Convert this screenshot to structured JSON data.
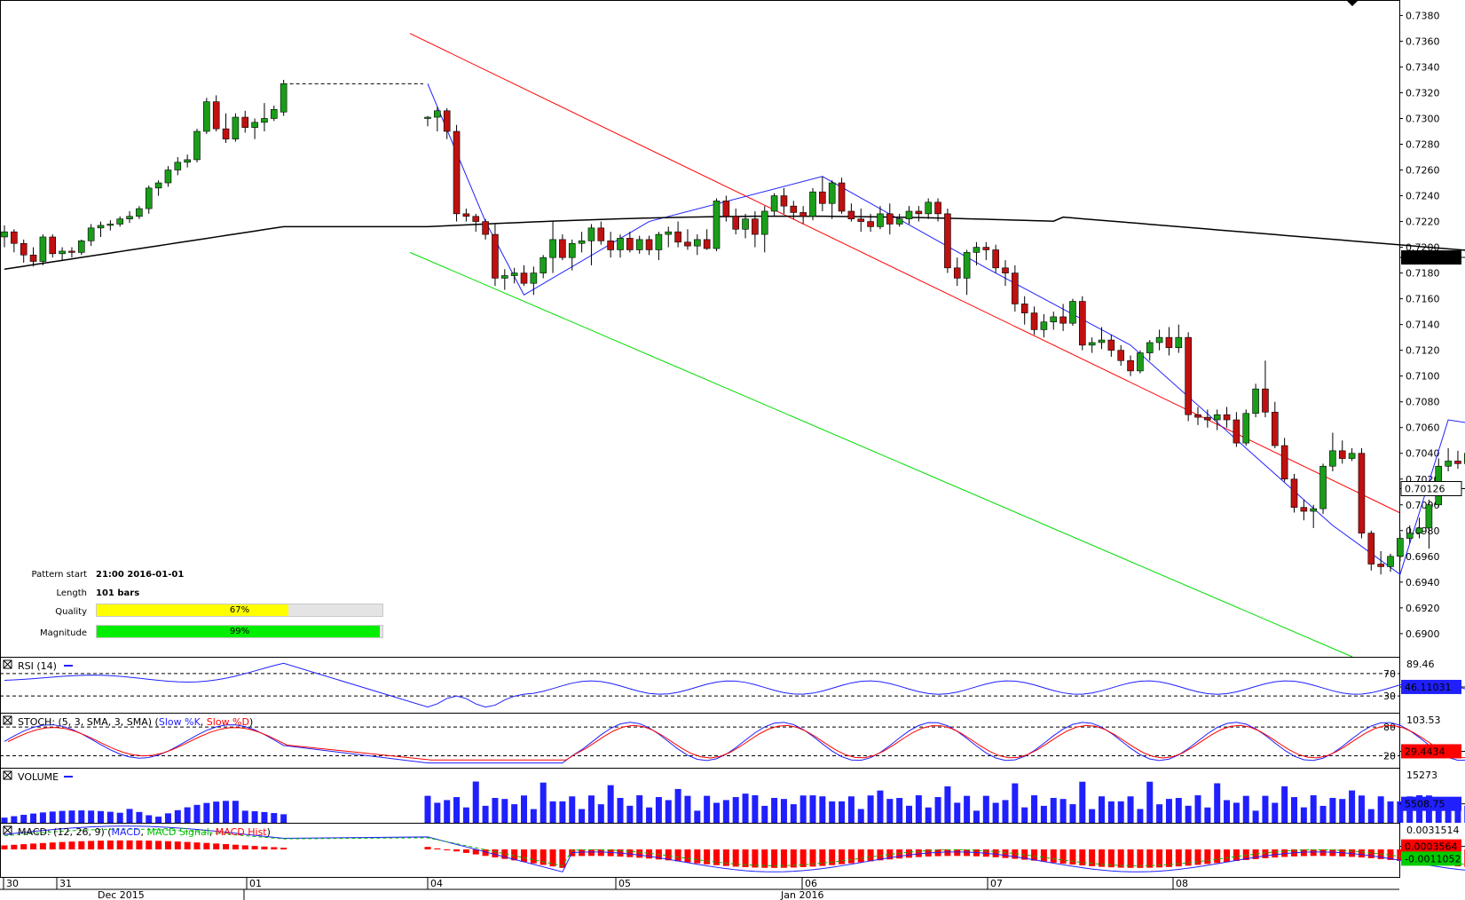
{
  "chart_data": {
    "type": "candlestick",
    "symbol_price_axis": {
      "ticks": [
        "0.7380",
        "0.7360",
        "0.7340",
        "0.7320",
        "0.7300",
        "0.7280",
        "0.7260",
        "0.7240",
        "0.7220",
        "0.7200",
        "0.7180",
        "0.7160",
        "0.7140",
        "0.7120",
        "0.7100",
        "0.7080",
        "0.7060",
        "0.7040",
        "0.7020",
        "0.7000",
        "0.6980",
        "0.6960",
        "0.6940",
        "0.6920",
        "0.6900"
      ],
      "range": [
        0.6882,
        0.7392
      ],
      "ma_last_label": "0.71921",
      "price_last_label": "0.70126",
      "ma_last": 0.71921,
      "price_last": 0.70126
    },
    "time_axis": {
      "day_labels": [
        "30",
        "31",
        "01",
        "04",
        "05",
        "06",
        "07",
        "08"
      ],
      "month_labels": [
        "Dec 2015",
        "Jan 2016"
      ]
    },
    "candles": [
      [
        0.7208,
        0.7217,
        0.72,
        0.7212
      ],
      [
        0.7212,
        0.7214,
        0.7196,
        0.7203
      ],
      [
        0.7203,
        0.7206,
        0.7188,
        0.7194
      ],
      [
        0.7194,
        0.72,
        0.7185,
        0.7189
      ],
      [
        0.7189,
        0.721,
        0.7186,
        0.7208
      ],
      [
        0.7208,
        0.721,
        0.7192,
        0.7195
      ],
      [
        0.7195,
        0.72,
        0.719,
        0.7197
      ],
      [
        0.7197,
        0.72,
        0.7192,
        0.7196
      ],
      [
        0.7196,
        0.7206,
        0.7194,
        0.7205
      ],
      [
        0.7205,
        0.7218,
        0.7201,
        0.7215
      ],
      [
        0.7215,
        0.722,
        0.7208,
        0.7217
      ],
      [
        0.7217,
        0.7221,
        0.7213,
        0.7218
      ],
      [
        0.7218,
        0.7224,
        0.7216,
        0.7222
      ],
      [
        0.7222,
        0.7228,
        0.7219,
        0.7224
      ],
      [
        0.7224,
        0.7232,
        0.7222,
        0.723
      ],
      [
        0.723,
        0.7248,
        0.7226,
        0.7246
      ],
      [
        0.7246,
        0.7252,
        0.724,
        0.725
      ],
      [
        0.725,
        0.7263,
        0.7247,
        0.726
      ],
      [
        0.726,
        0.727,
        0.7256,
        0.7266
      ],
      [
        0.7266,
        0.7272,
        0.7262,
        0.7268
      ],
      [
        0.7268,
        0.7292,
        0.7266,
        0.729
      ],
      [
        0.729,
        0.7316,
        0.7288,
        0.7313
      ],
      [
        0.7313,
        0.7318,
        0.729,
        0.7292
      ],
      [
        0.7292,
        0.7304,
        0.7281,
        0.7284
      ],
      [
        0.7284,
        0.7304,
        0.7282,
        0.7301
      ],
      [
        0.7301,
        0.7306,
        0.7289,
        0.7293
      ],
      [
        0.7293,
        0.73,
        0.7284,
        0.7297
      ],
      [
        0.7297,
        0.7312,
        0.729,
        0.73
      ],
      [
        0.73,
        0.731,
        0.7298,
        0.7307
      ],
      [
        0.7305,
        0.733,
        0.7302,
        0.7327
      ],
      [
        0.73,
        0.7302,
        0.7294,
        0.7301
      ],
      [
        0.7301,
        0.7309,
        0.729,
        0.7306
      ],
      [
        0.7306,
        0.7308,
        0.7284,
        0.729
      ],
      [
        0.729,
        0.7295,
        0.722,
        0.7226
      ],
      [
        0.7226,
        0.723,
        0.722,
        0.7224
      ],
      [
        0.7224,
        0.7226,
        0.7212,
        0.722
      ],
      [
        0.722,
        0.7222,
        0.7206,
        0.721
      ],
      [
        0.721,
        0.7218,
        0.717,
        0.7176
      ],
      [
        0.7176,
        0.7183,
        0.7167,
        0.7178
      ],
      [
        0.7178,
        0.7184,
        0.7172,
        0.718
      ],
      [
        0.718,
        0.7186,
        0.717,
        0.7172
      ],
      [
        0.7172,
        0.7185,
        0.7163,
        0.718
      ],
      [
        0.718,
        0.7194,
        0.7176,
        0.7192
      ],
      [
        0.7192,
        0.722,
        0.718,
        0.7206
      ],
      [
        0.7206,
        0.721,
        0.719,
        0.7192
      ],
      [
        0.7192,
        0.7206,
        0.7182,
        0.7203
      ],
      [
        0.7203,
        0.7212,
        0.7196,
        0.7205
      ],
      [
        0.7205,
        0.7218,
        0.7186,
        0.7215
      ],
      [
        0.7215,
        0.722,
        0.7202,
        0.7205
      ],
      [
        0.7205,
        0.7212,
        0.7192,
        0.7198
      ],
      [
        0.7198,
        0.721,
        0.7192,
        0.7207
      ],
      [
        0.7207,
        0.7212,
        0.7196,
        0.7198
      ],
      [
        0.7198,
        0.7209,
        0.7195,
        0.7206
      ],
      [
        0.7206,
        0.7209,
        0.7194,
        0.7198
      ],
      [
        0.7198,
        0.7212,
        0.719,
        0.721
      ],
      [
        0.721,
        0.7216,
        0.72,
        0.7212
      ],
      [
        0.7212,
        0.722,
        0.72,
        0.7204
      ],
      [
        0.7204,
        0.7214,
        0.7198,
        0.7201
      ],
      [
        0.7201,
        0.721,
        0.7194,
        0.7206
      ],
      [
        0.7206,
        0.7214,
        0.7198,
        0.7199
      ],
      [
        0.7199,
        0.7238,
        0.7197,
        0.7236
      ],
      [
        0.7236,
        0.724,
        0.722,
        0.7224
      ],
      [
        0.7224,
        0.723,
        0.721,
        0.7214
      ],
      [
        0.7214,
        0.7226,
        0.7207,
        0.7222
      ],
      [
        0.7222,
        0.7228,
        0.72,
        0.721
      ],
      [
        0.721,
        0.7232,
        0.7196,
        0.7228
      ],
      [
        0.7228,
        0.7242,
        0.7224,
        0.724
      ],
      [
        0.724,
        0.7246,
        0.7226,
        0.7232
      ],
      [
        0.7232,
        0.7236,
        0.7222,
        0.7227
      ],
      [
        0.7227,
        0.7232,
        0.7218,
        0.7224
      ],
      [
        0.7224,
        0.7246,
        0.7221,
        0.7243
      ],
      [
        0.7243,
        0.7255,
        0.7228,
        0.7234
      ],
      [
        0.7234,
        0.7252,
        0.7222,
        0.725
      ],
      [
        0.725,
        0.7254,
        0.7226,
        0.7228
      ],
      [
        0.7228,
        0.7234,
        0.722,
        0.7222
      ],
      [
        0.7222,
        0.723,
        0.7212,
        0.722
      ],
      [
        0.722,
        0.7226,
        0.7212,
        0.7216
      ],
      [
        0.7216,
        0.7232,
        0.7214,
        0.7226
      ],
      [
        0.7226,
        0.7234,
        0.721,
        0.7218
      ],
      [
        0.7218,
        0.7226,
        0.7216,
        0.7222
      ],
      [
        0.7222,
        0.7232,
        0.7218,
        0.7228
      ],
      [
        0.7228,
        0.7232,
        0.722,
        0.7226
      ],
      [
        0.7226,
        0.7238,
        0.7222,
        0.7235
      ],
      [
        0.7235,
        0.7238,
        0.722,
        0.7226
      ],
      [
        0.7226,
        0.723,
        0.718,
        0.7184
      ],
      [
        0.7184,
        0.7192,
        0.717,
        0.7176
      ],
      [
        0.7176,
        0.7198,
        0.7163,
        0.7196
      ],
      [
        0.7196,
        0.7204,
        0.7186,
        0.72
      ],
      [
        0.72,
        0.7204,
        0.719,
        0.7198
      ],
      [
        0.7198,
        0.7202,
        0.718,
        0.7184
      ],
      [
        0.7184,
        0.719,
        0.717,
        0.718
      ],
      [
        0.718,
        0.7186,
        0.715,
        0.7156
      ],
      [
        0.7156,
        0.7162,
        0.714,
        0.7149
      ],
      [
        0.7149,
        0.7154,
        0.7132,
        0.7136
      ],
      [
        0.7136,
        0.7148,
        0.713,
        0.7142
      ],
      [
        0.7142,
        0.715,
        0.7136,
        0.7146
      ],
      [
        0.7146,
        0.7156,
        0.7135,
        0.7141
      ],
      [
        0.7141,
        0.716,
        0.7139,
        0.7158
      ],
      [
        0.7158,
        0.7162,
        0.712,
        0.7124
      ],
      [
        0.7124,
        0.713,
        0.7118,
        0.7126
      ],
      [
        0.7126,
        0.7138,
        0.7121,
        0.7128
      ],
      [
        0.7128,
        0.7132,
        0.7115,
        0.712
      ],
      [
        0.712,
        0.7124,
        0.7108,
        0.7112
      ],
      [
        0.7112,
        0.7116,
        0.71,
        0.7104
      ],
      [
        0.7104,
        0.712,
        0.7102,
        0.7118
      ],
      [
        0.7118,
        0.7128,
        0.7112,
        0.7126
      ],
      [
        0.7126,
        0.7136,
        0.712,
        0.713
      ],
      [
        0.713,
        0.7138,
        0.7116,
        0.7122
      ],
      [
        0.7122,
        0.714,
        0.7118,
        0.713
      ],
      [
        0.713,
        0.7134,
        0.7065,
        0.707
      ],
      [
        0.707,
        0.7076,
        0.7062,
        0.7068
      ],
      [
        0.7068,
        0.7074,
        0.706,
        0.7066
      ],
      [
        0.7066,
        0.7074,
        0.7058,
        0.707
      ],
      [
        0.707,
        0.7076,
        0.706,
        0.7066
      ],
      [
        0.7066,
        0.7072,
        0.7045,
        0.7048
      ],
      [
        0.7048,
        0.7074,
        0.7046,
        0.7071
      ],
      [
        0.7071,
        0.7094,
        0.7068,
        0.709
      ],
      [
        0.709,
        0.7112,
        0.7068,
        0.7072
      ],
      [
        0.7072,
        0.708,
        0.7044,
        0.7046
      ],
      [
        0.7046,
        0.7052,
        0.7018,
        0.702
      ],
      [
        0.702,
        0.7024,
        0.6994,
        0.6998
      ],
      [
        0.6998,
        0.7004,
        0.6988,
        0.6995
      ],
      [
        0.6995,
        0.7,
        0.6982,
        0.6997
      ],
      [
        0.6997,
        0.7032,
        0.6993,
        0.703
      ],
      [
        0.703,
        0.7056,
        0.7026,
        0.7042
      ],
      [
        0.7042,
        0.705,
        0.7032,
        0.7036
      ],
      [
        0.7036,
        0.7044,
        0.7034,
        0.704
      ],
      [
        0.704,
        0.7044,
        0.6974,
        0.6978
      ],
      [
        0.6978,
        0.698,
        0.6949,
        0.6954
      ],
      [
        0.6954,
        0.6964,
        0.6946,
        0.6952
      ],
      [
        0.6952,
        0.6962,
        0.6948,
        0.696
      ],
      [
        0.696,
        0.6978,
        0.6956,
        0.6974
      ],
      [
        0.6974,
        0.6984,
        0.697,
        0.6978
      ],
      [
        0.6978,
        0.699,
        0.6974,
        0.6982
      ],
      [
        0.6982,
        0.7004,
        0.6966,
        0.7
      ],
      [
        0.7,
        0.7036,
        0.6998,
        0.703
      ],
      [
        0.703,
        0.7044,
        0.7026,
        0.7034
      ],
      [
        0.7034,
        0.7042,
        0.7028,
        0.7032
      ],
      [
        0.7032,
        0.7044,
        0.7028,
        0.704
      ],
      [
        0.704,
        0.7046,
        0.703,
        0.7032
      ],
      [
        0.7032,
        0.704,
        0.703,
        0.7036
      ],
      [
        0.7036,
        0.7062,
        0.7032,
        0.7054
      ],
      [
        0.7054,
        0.706,
        0.7016,
        0.702
      ],
      [
        0.702,
        0.7044,
        0.701,
        0.7038
      ],
      [
        0.7038,
        0.7042,
        0.7028,
        0.7034
      ],
      [
        0.7034,
        0.704,
        0.7018,
        0.702
      ],
      [
        0.702,
        0.7026,
        0.7004,
        0.7004
      ],
      [
        0.7004,
        0.7018,
        0.6998,
        0.7013
      ]
    ],
    "gap_after_index": 29,
    "indicators": {
      "rsi_label": "RSI (14)",
      "rsi_value": "46.11031",
      "rsi_levels": [
        "70",
        "30"
      ],
      "rsi_top": "89.46",
      "stoch_label": "STOCH: (5, 3, SMA, 3, SMA)",
      "stoch_k": "Slow %K",
      "stoch_d": "Slow %D",
      "stoch_value": "29.4434",
      "stoch_levels": [
        "80",
        "20"
      ],
      "stoch_top": "103.53",
      "volume_label": "VOLUME",
      "volume_value": "5508.75",
      "volume_top": "15273",
      "macd_label": "MACD: (12, 26, 9)",
      "macd_name": "MACD",
      "macd_signal": "MACD Signal",
      "macd_hist": "MACD Hist",
      "macd_value": "0.0003564",
      "macd_signal_value": "-0.0011052",
      "macd_top": "0.0031514"
    },
    "pattern": {
      "start_label": "Pattern start",
      "start_value": "21:00 2016-01-01",
      "length_label": "Length",
      "length_value": "101 bars",
      "quality_label": "Quality",
      "quality_value": "67%",
      "quality": 0.67,
      "magnitude_label": "Magnitude",
      "magnitude_value": "99%",
      "magnitude": 0.99
    },
    "colors": {
      "bull": "#1a9e1a",
      "bear": "#c01010",
      "ma": "#000000",
      "upper_trend": "#ff0000",
      "lower_trend": "#00dd00",
      "zigzag": "#2020ff",
      "quality_fill": "#ffff00",
      "magnitude_fill": "#00ee00"
    }
  }
}
